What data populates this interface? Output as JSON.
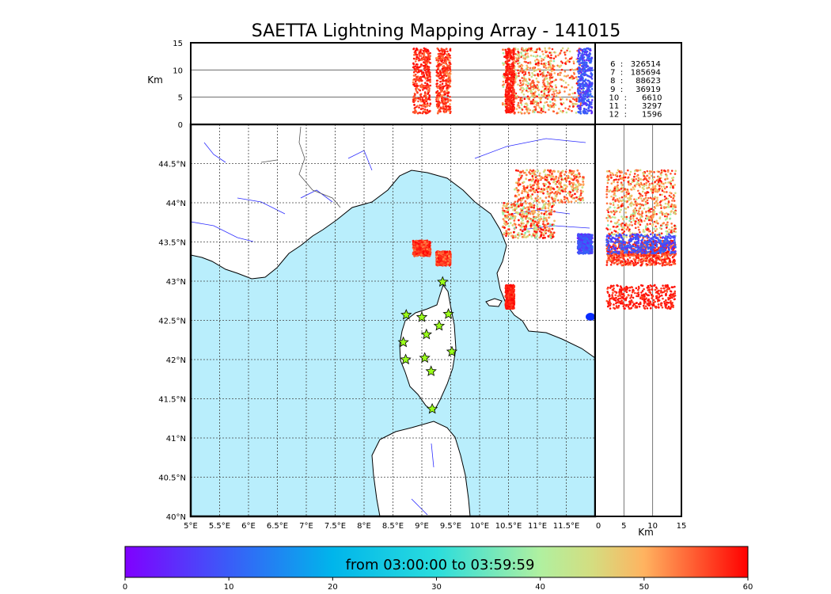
{
  "chart_data": {
    "type": "scatter",
    "title": "SAETTA Lightning Mapping Array - 141015",
    "colors": {
      "sea": "#b9eefc",
      "land": "#ffffff",
      "river": "#2c2cff",
      "border": "#555555",
      "coast": "#000000",
      "station_fill": "#9aff1a",
      "highlight_stat": "#ff0000"
    },
    "map_panel": {
      "xlabel": "",
      "ylabel": "",
      "xlim": [
        5.0,
        12.0
      ],
      "ylim": [
        40.0,
        45.0
      ],
      "xticks": [
        "5°E",
        "5.5°E",
        "6°E",
        "6.5°E",
        "7°E",
        "7.5°E",
        "8°E",
        "8.5°E",
        "9°E",
        "9.5°E",
        "10°E",
        "10.5°E",
        "11°E",
        "11.5°E"
      ],
      "yticks": [
        "40°N",
        "40.5°N",
        "41°N",
        "41.5°N",
        "42°N",
        "42.5°N",
        "43°N",
        "43.5°N",
        "44°N",
        "44.5°N"
      ],
      "grid": true,
      "stations": [
        {
          "lon": 8.73,
          "lat": 42.57
        },
        {
          "lon": 9.0,
          "lat": 42.54
        },
        {
          "lon": 9.46,
          "lat": 42.58
        },
        {
          "lon": 9.3,
          "lat": 42.43
        },
        {
          "lon": 9.08,
          "lat": 42.32
        },
        {
          "lon": 8.68,
          "lat": 42.22
        },
        {
          "lon": 9.05,
          "lat": 42.02
        },
        {
          "lon": 8.72,
          "lat": 42.0
        },
        {
          "lon": 9.52,
          "lat": 42.1
        },
        {
          "lon": 9.16,
          "lat": 41.85
        },
        {
          "lon": 9.18,
          "lat": 41.37
        },
        {
          "lon": 9.36,
          "lat": 42.99
        }
      ],
      "clusters": [
        {
          "lon_range": [
            8.85,
            9.15
          ],
          "lat_range": [
            43.32,
            43.52
          ],
          "time_range": [
            52,
            60
          ]
        },
        {
          "lon_range": [
            9.25,
            9.5
          ],
          "lat_range": [
            43.2,
            43.38
          ],
          "time_range": [
            50,
            60
          ]
        },
        {
          "lon_range": [
            10.4,
            11.3
          ],
          "lat_range": [
            43.55,
            44.0
          ],
          "time_range": [
            35,
            60
          ]
        },
        {
          "lon_range": [
            10.6,
            11.8
          ],
          "lat_range": [
            44.0,
            44.42
          ],
          "time_range": [
            40,
            60
          ]
        },
        {
          "lon_range": [
            11.7,
            11.95
          ],
          "lat_range": [
            43.35,
            43.6
          ],
          "time_range": [
            3,
            12
          ]
        },
        {
          "lon_range": [
            10.45,
            10.6
          ],
          "lat_range": [
            42.65,
            42.95
          ],
          "time_range": [
            55,
            60
          ]
        }
      ]
    },
    "top_panel": {
      "ylabel": "Km",
      "ylim": [
        0,
        15
      ],
      "yticks": [
        "0",
        "5",
        "10",
        "15"
      ],
      "hlines": [
        5,
        10
      ]
    },
    "side_panel": {
      "xlabel": "Km",
      "xlim": [
        0,
        15
      ],
      "xticks": [
        "0",
        "5",
        "10",
        "15"
      ],
      "vlines": [
        5,
        10
      ]
    },
    "stats": [
      {
        "label": "6  :   326514",
        "highlight": false
      },
      {
        "label": "7  :   185694",
        "highlight": true
      },
      {
        "label": "8  :     88623",
        "highlight": false
      },
      {
        "label": "9  :     36919",
        "highlight": false
      },
      {
        "label": "10  :      6610",
        "highlight": false
      },
      {
        "label": "11  :      3297",
        "highlight": false
      },
      {
        "label": "12  :      1596",
        "highlight": false
      }
    ],
    "colorbar": {
      "label": "from 03:00:00 to 03:59:59",
      "range": [
        0,
        60
      ],
      "ticks": [
        "0",
        "10",
        "20",
        "30",
        "40",
        "50",
        "60"
      ],
      "cmap": "rainbow"
    }
  }
}
